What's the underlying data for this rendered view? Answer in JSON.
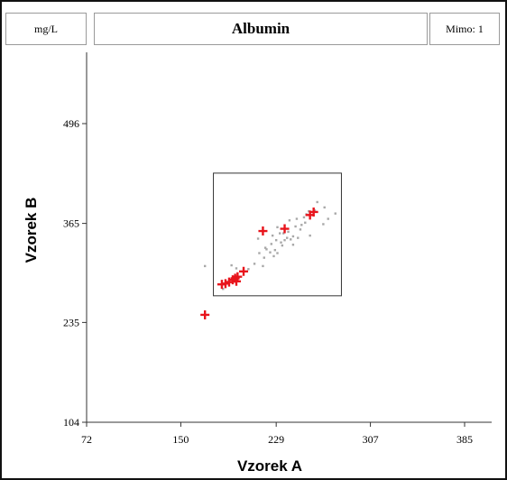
{
  "header": {
    "unit": "mg/L",
    "title": "Albumin",
    "outside": "Mimo: 1"
  },
  "chart_data": {
    "type": "scatter",
    "title": "Albumin",
    "xlabel": "Vzorek A",
    "ylabel": "Vzorek B",
    "unit": "mg/L",
    "xlim": [
      72,
      385
    ],
    "ylim": [
      104,
      496
    ],
    "x_ticks": [
      "72",
      "150",
      "229",
      "307",
      "385"
    ],
    "y_ticks": [
      "104",
      "235",
      "365",
      "496"
    ],
    "colors": {
      "highlight": "#e8141c",
      "background": "#a8a8a8"
    },
    "acceptance_box": {
      "x": [
        177,
        283
      ],
      "y": [
        270,
        431
      ]
    },
    "series": [
      {
        "values": [
          [
            263,
            393
          ],
          [
            254,
            377
          ],
          [
            250,
            363
          ],
          [
            253,
            366
          ],
          [
            246,
            371
          ],
          [
            239,
            354
          ],
          [
            240,
            369
          ],
          [
            230,
            360
          ],
          [
            238,
            346
          ],
          [
            243,
            348
          ],
          [
            249,
            357
          ],
          [
            235,
            352
          ],
          [
            226,
            349
          ],
          [
            229,
            343
          ],
          [
            233,
            340
          ],
          [
            225,
            338
          ],
          [
            221,
            331
          ],
          [
            228,
            330
          ],
          [
            243,
            337
          ],
          [
            247,
            346
          ],
          [
            234,
            336
          ],
          [
            230,
            326
          ],
          [
            220,
            333
          ],
          [
            224,
            327
          ],
          [
            219,
            320
          ],
          [
            227,
            322
          ],
          [
            236,
            343
          ],
          [
            252,
            373
          ],
          [
            261,
            382
          ],
          [
            278,
            378
          ],
          [
            272,
            371
          ],
          [
            269,
            386
          ],
          [
            257,
            349
          ],
          [
            245,
            361
          ],
          [
            241,
            344
          ],
          [
            232,
            352
          ],
          [
            218,
            309
          ],
          [
            215,
            326
          ],
          [
            214,
            345
          ],
          [
            192,
            310
          ],
          [
            196,
            306
          ],
          [
            211,
            312
          ],
          [
            206,
            305
          ],
          [
            187,
            285
          ],
          [
            185,
            279
          ],
          [
            170,
            309
          ],
          [
            268,
            364
          ],
          [
            256,
            381
          ]
        ]
      },
      {
        "values": [
          [
            170,
            245
          ],
          [
            184,
            285
          ],
          [
            187,
            286
          ],
          [
            190,
            288
          ],
          [
            193,
            291
          ],
          [
            195,
            293
          ],
          [
            197,
            295
          ],
          [
            196,
            289
          ],
          [
            202,
            302
          ],
          [
            218,
            355
          ],
          [
            236,
            358
          ],
          [
            257,
            376
          ],
          [
            260,
            380
          ]
        ]
      }
    ]
  }
}
